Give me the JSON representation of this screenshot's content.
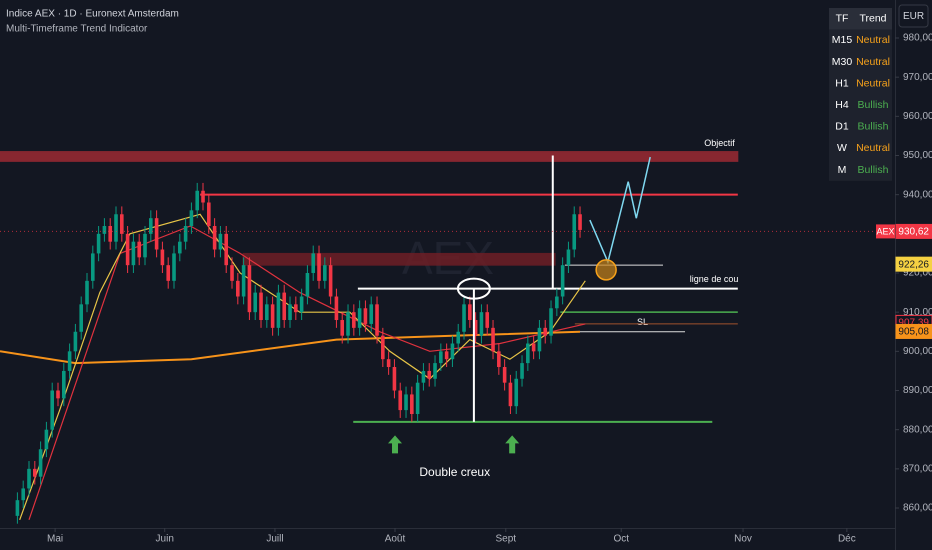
{
  "chart_data": {
    "type": "candlestick",
    "title": "Indice AEX · 1D · Euronext Amsterdam",
    "subtitle": "Multi-Timeframe Trend Indicator",
    "watermark": "AEX",
    "currency": "EUR",
    "up_color": "#089981",
    "down_color": "#f23645",
    "x": [
      0,
      1,
      2,
      3,
      4,
      5,
      6,
      7,
      8,
      9,
      10,
      11,
      12,
      13,
      14,
      15,
      16,
      17,
      18,
      19,
      20,
      21,
      22,
      23,
      24,
      25,
      26,
      27,
      28,
      29,
      30,
      31,
      32,
      33,
      34,
      35,
      36,
      37,
      38,
      39,
      40,
      41,
      42,
      43,
      44,
      45,
      46,
      47,
      48,
      49,
      50,
      51,
      52,
      53,
      54,
      55,
      56,
      57,
      58,
      59,
      60,
      61,
      62,
      63,
      64,
      65,
      66,
      67,
      68,
      69,
      70,
      71,
      72,
      73,
      74,
      75,
      76,
      77,
      78,
      79,
      80,
      81,
      82,
      83,
      84,
      85,
      86,
      87,
      88,
      89,
      90,
      91,
      92,
      93,
      94,
      95,
      96,
      97
    ],
    "open": [
      858,
      862,
      865,
      870,
      868,
      875,
      880,
      890,
      888,
      895,
      900,
      905,
      912,
      918,
      925,
      930,
      932,
      928,
      935,
      930,
      922,
      928,
      924,
      930,
      934,
      926,
      922,
      918,
      925,
      928,
      932,
      936,
      941,
      938,
      932,
      926,
      930,
      922,
      918,
      914,
      922,
      910,
      915,
      908,
      912,
      906,
      915,
      908,
      912,
      910,
      914,
      920,
      925,
      918,
      922,
      914,
      908,
      904,
      910,
      906,
      911,
      907,
      912,
      904,
      898,
      896,
      890,
      885,
      889,
      884,
      892,
      895,
      893,
      897,
      900,
      898,
      902,
      905,
      912,
      908,
      904,
      910,
      906,
      900,
      896,
      892,
      886,
      893,
      897,
      902,
      900,
      906,
      904,
      911,
      914,
      922,
      926,
      935
    ],
    "high": [
      864,
      867,
      872,
      872,
      877,
      882,
      892,
      892,
      897,
      902,
      907,
      914,
      920,
      927,
      932,
      934,
      934,
      937,
      937,
      932,
      930,
      930,
      932,
      936,
      936,
      928,
      924,
      927,
      930,
      934,
      938,
      943,
      943,
      940,
      934,
      932,
      932,
      924,
      920,
      924,
      924,
      917,
      917,
      914,
      914,
      917,
      917,
      914,
      914,
      916,
      922,
      927,
      927,
      924,
      924,
      916,
      910,
      912,
      912,
      913,
      913,
      914,
      914,
      906,
      900,
      898,
      892,
      891,
      891,
      894,
      897,
      897,
      899,
      902,
      902,
      904,
      907,
      914,
      914,
      910,
      912,
      912,
      908,
      902,
      898,
      894,
      895,
      899,
      904,
      904,
      908,
      908,
      913,
      916,
      924,
      928,
      937,
      937
    ],
    "low": [
      856,
      860,
      863,
      866,
      866,
      873,
      878,
      886,
      886,
      893,
      898,
      903,
      910,
      916,
      923,
      928,
      926,
      926,
      928,
      920,
      920,
      922,
      922,
      928,
      924,
      920,
      916,
      916,
      923,
      926,
      930,
      934,
      936,
      930,
      924,
      924,
      920,
      916,
      912,
      912,
      908,
      908,
      906,
      906,
      904,
      904,
      906,
      906,
      908,
      908,
      912,
      918,
      916,
      916,
      912,
      906,
      902,
      902,
      904,
      904,
      905,
      905,
      902,
      896,
      894,
      888,
      883,
      883,
      882,
      882,
      890,
      891,
      891,
      895,
      896,
      896,
      900,
      903,
      906,
      902,
      902,
      904,
      898,
      894,
      890,
      884,
      884,
      891,
      895,
      898,
      898,
      902,
      902,
      909,
      912,
      920,
      924,
      929
    ],
    "close": [
      862,
      865,
      870,
      868,
      875,
      880,
      890,
      888,
      895,
      900,
      905,
      912,
      918,
      925,
      930,
      932,
      928,
      935,
      930,
      922,
      928,
      924,
      930,
      934,
      926,
      922,
      918,
      925,
      928,
      932,
      936,
      941,
      938,
      932,
      926,
      930,
      922,
      918,
      914,
      922,
      910,
      915,
      908,
      912,
      906,
      915,
      908,
      912,
      910,
      914,
      920,
      925,
      918,
      922,
      914,
      908,
      904,
      910,
      906,
      911,
      907,
      912,
      904,
      898,
      896,
      890,
      885,
      889,
      884,
      892,
      895,
      893,
      897,
      900,
      898,
      902,
      905,
      912,
      908,
      904,
      910,
      906,
      900,
      896,
      892,
      886,
      893,
      897,
      902,
      900,
      906,
      904,
      911,
      914,
      922,
      926,
      935,
      931
    ],
    "xlim": [
      -3,
      151.3
    ],
    "xticks": [
      {
        "value": 6.5,
        "label": "Mai"
      },
      {
        "value": 25.4,
        "label": "Juin"
      },
      {
        "value": 44.4,
        "label": "Juill"
      },
      {
        "value": 65.1,
        "label": "Août"
      },
      {
        "value": 84.2,
        "label": "Sept"
      },
      {
        "value": 104.1,
        "label": "Oct"
      },
      {
        "value": 125.1,
        "label": "Nov"
      },
      {
        "value": 143,
        "label": "Déc"
      }
    ],
    "ylim": [
      854.9,
      989.7
    ],
    "yticks": [
      {
        "value": 860,
        "label": "860,00"
      },
      {
        "value": 870,
        "label": "870,00"
      },
      {
        "value": 880,
        "label": "880,00"
      },
      {
        "value": 890,
        "label": "890,00"
      },
      {
        "value": 900,
        "label": "900,00"
      },
      {
        "value": 910,
        "label": "910,00"
      },
      {
        "value": 920,
        "label": "920,00"
      },
      {
        "value": 930,
        "label": "930,00"
      },
      {
        "value": 940,
        "label": "940,00"
      },
      {
        "value": 950,
        "label": "950,00"
      },
      {
        "value": 960,
        "label": "960,00"
      },
      {
        "value": 970,
        "label": "970,00"
      },
      {
        "value": 980,
        "label": "980,00"
      }
    ],
    "moving_averages": [
      {
        "color": "#f7931a",
        "x": [
          -3,
          10,
          30,
          55,
          75,
          97
        ],
        "values": [
          900,
          897,
          898,
          903,
          904,
          905
        ]
      },
      {
        "color": "#e0323e",
        "x": [
          2,
          10.8,
          17.7,
          29.8,
          38.4,
          48.7,
          62.5,
          71.1,
          83.2,
          97.9
        ],
        "values": [
          857,
          895,
          925,
          932,
          925,
          915,
          905,
          900,
          902,
          907
        ]
      },
      {
        "color": "#e8c547",
        "x": [
          0.4,
          7.3,
          14.2,
          19.4,
          31.5,
          38.4,
          48.7,
          57.3,
          64.2,
          71.1,
          78,
          84.9,
          91.8,
          97.9
        ],
        "values": [
          857,
          885,
          915,
          930,
          935,
          920,
          910,
          910,
          900,
          893,
          903,
          898,
          905,
          918
        ]
      }
    ],
    "levels": [
      {
        "from": 948.5,
        "to": 951,
        "x0": -3,
        "x1": 124.2,
        "color": "#9c2a33",
        "label": "Objectif"
      },
      {
        "from": 922,
        "to": 925,
        "x0": 38.9,
        "x1": 92.7,
        "color": "#6e1f26"
      },
      {
        "value": 940,
        "x0": 31.5,
        "x1": 124.2,
        "color": "#f23645",
        "width": 2
      },
      {
        "value": 916,
        "x0": 58.7,
        "x1": 124.2,
        "color": "#ffffff",
        "width": 2,
        "label": "ligne de cou"
      },
      {
        "value": 882,
        "x0": 57.9,
        "x1": 119.8,
        "color": "#4caf50",
        "width": 2
      },
      {
        "value": 910,
        "x0": 93.6,
        "x1": 124.2,
        "color": "#4caf50",
        "width": 1.5
      },
      {
        "value": 905,
        "x0": 96.1,
        "x1": 115.1,
        "color": "#dddddd",
        "width": 1,
        "label": "SL"
      },
      {
        "value": 907,
        "x0": 96.1,
        "x1": 124.2,
        "color": "#a0522d",
        "width": 1
      },
      {
        "value": 922,
        "x0": 94.4,
        "x1": 111.3,
        "color": "#dddddd",
        "width": 1
      }
    ],
    "verticals": [
      {
        "x": 92.3,
        "from": 950,
        "to": 916,
        "color": "#ffffff"
      },
      {
        "x": 78.7,
        "from": 916,
        "to": 882,
        "color": "#ffffff"
      }
    ],
    "ellipse": {
      "x": 78.7,
      "value": 916
    },
    "arrows": [
      {
        "x": 65.1,
        "value": 876
      },
      {
        "x": 85.3,
        "value": 876
      }
    ],
    "annotation": {
      "text": "Double creux",
      "x": 75.4,
      "value": 869
    },
    "projection": {
      "color": "#7fd8f0",
      "x": [
        98.7,
        101.8,
        105.3,
        106.7,
        109.1
      ],
      "values": [
        933.5,
        922.8,
        943.3,
        934,
        949.6
      ]
    },
    "target_circle": {
      "x": 101.5,
      "value": 920.8
    },
    "price_tags": [
      {
        "name": "AEX",
        "value": 930.62,
        "label": "930,62",
        "color": "#f23645",
        "text_color": "#ffffff"
      },
      {
        "value": 922.26,
        "label": "922,26",
        "color": "#f5d142",
        "text_color": "#131722"
      },
      {
        "value": 907.39,
        "label": "907,39",
        "color": "#131722",
        "text_color": "#f23645"
      },
      {
        "value": 905.08,
        "label": "905,08",
        "color": "#f7931a",
        "text_color": "#131722"
      }
    ],
    "trend_table": {
      "header": [
        "TF",
        "Trend"
      ],
      "rows": [
        [
          "M15",
          "Neutral"
        ],
        [
          "M30",
          "Neutral"
        ],
        [
          "H1",
          "Neutral"
        ],
        [
          "H4",
          "Bullish"
        ],
        [
          "D1",
          "Bullish"
        ],
        [
          "W",
          "Neutral"
        ],
        [
          "M",
          "Bullish"
        ]
      ],
      "colors": {
        "Neutral": "#f7a21b",
        "Bullish": "#4caf50"
      }
    }
  }
}
